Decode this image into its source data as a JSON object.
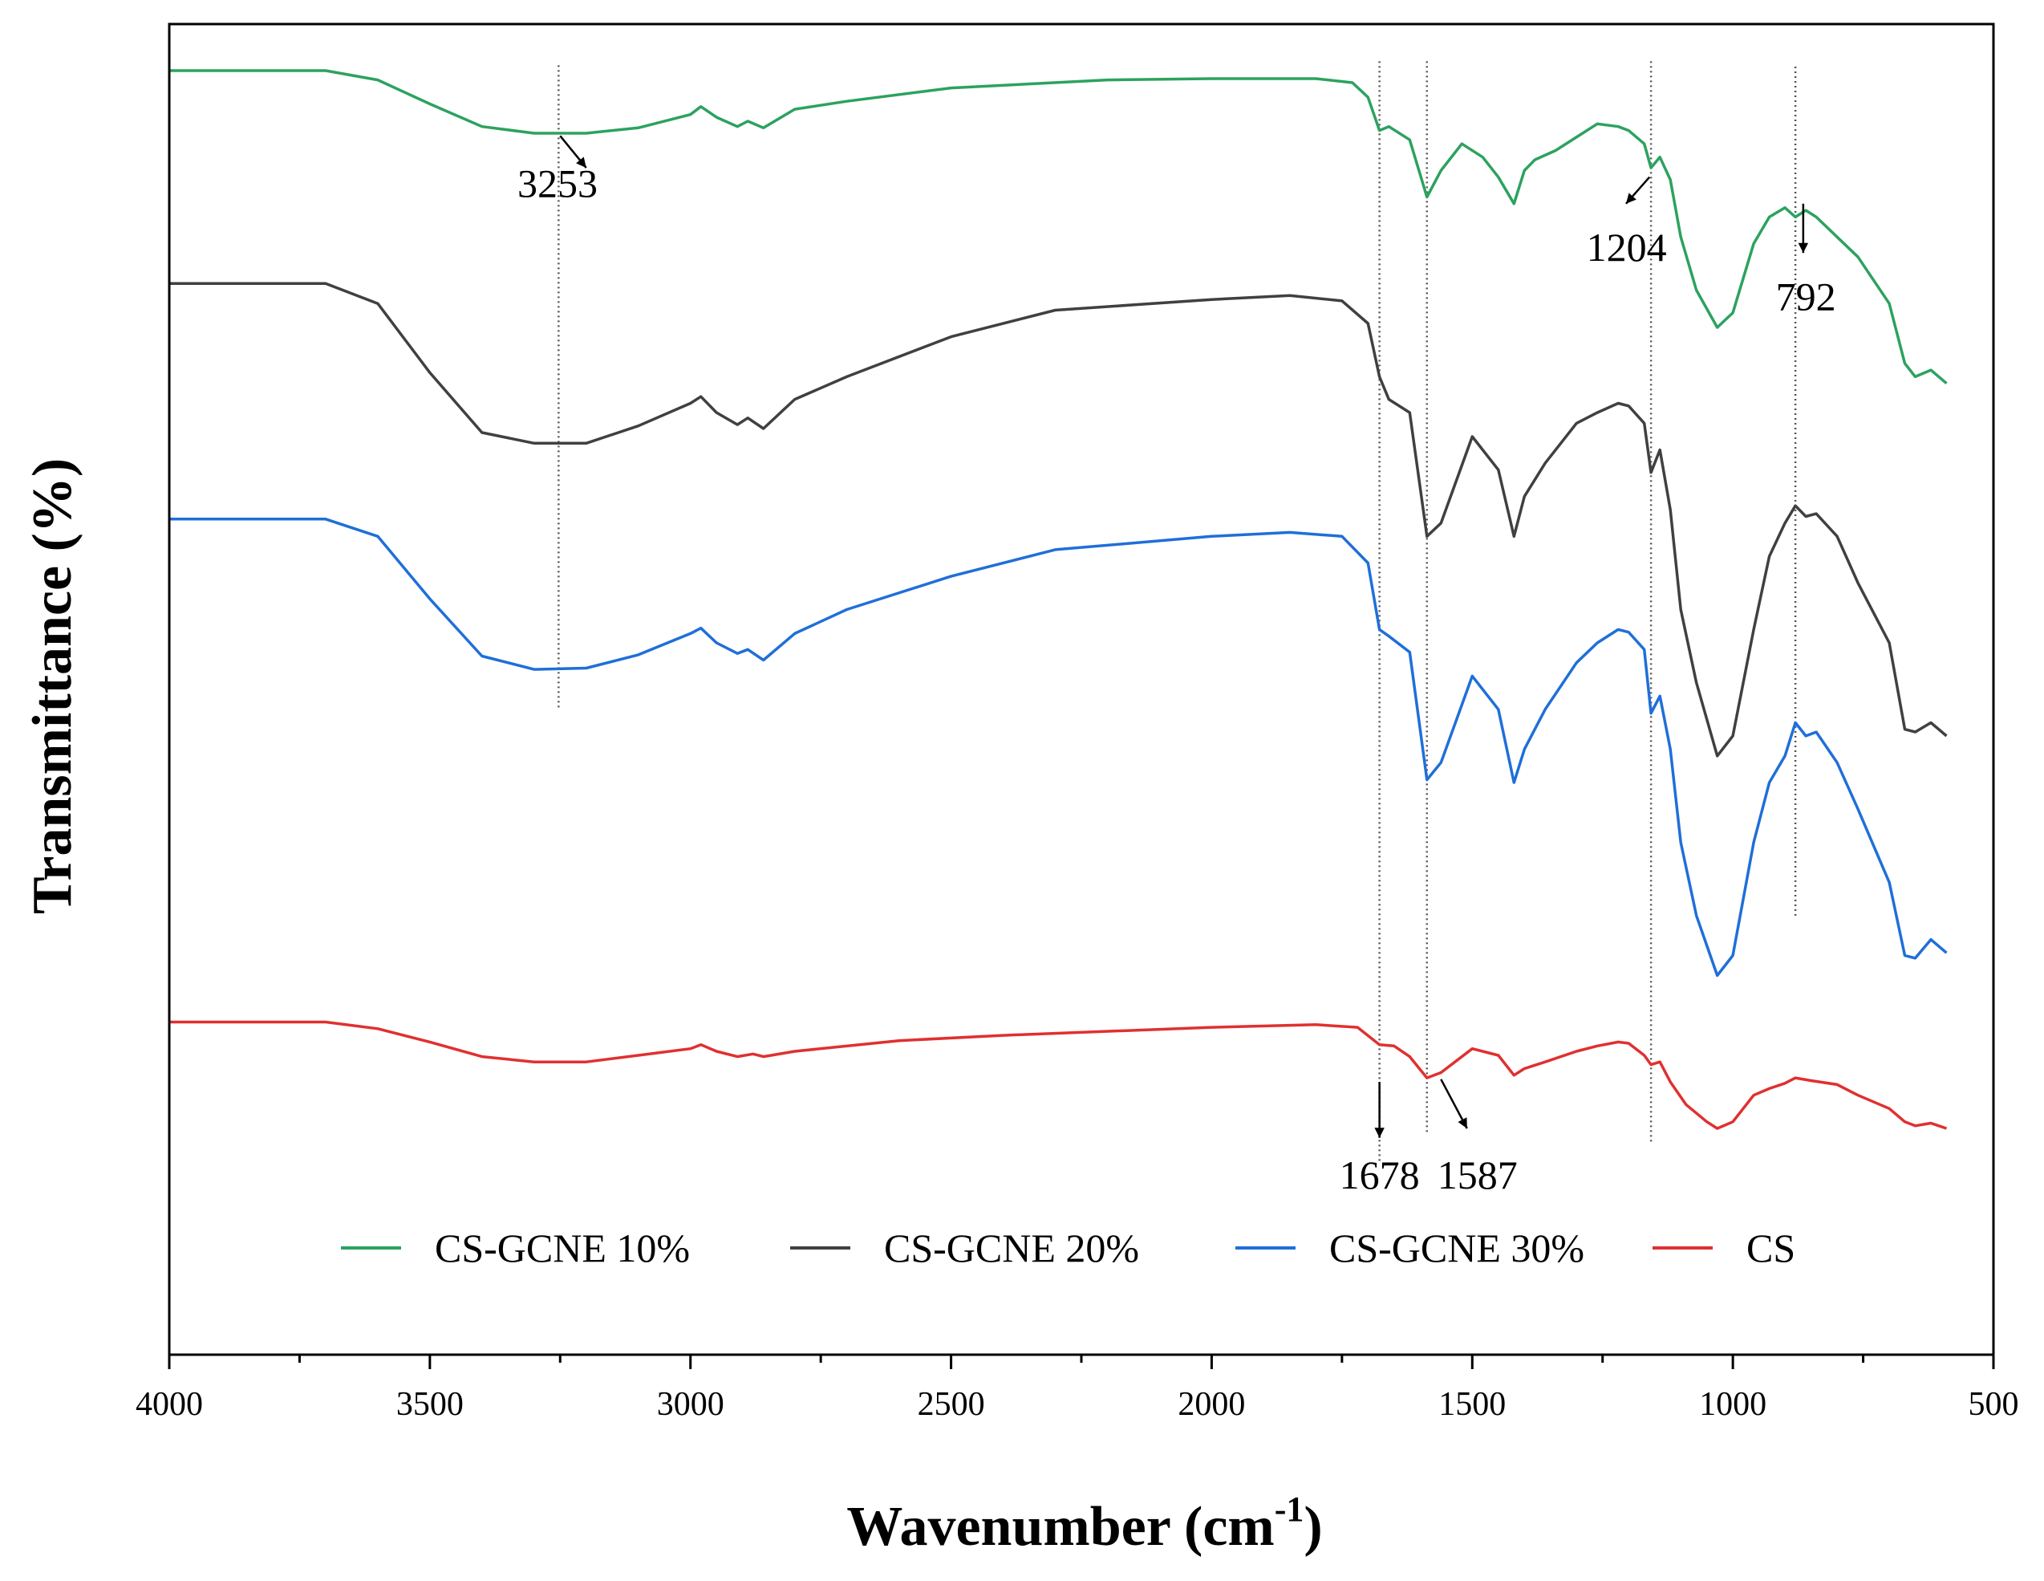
{
  "chart_data": {
    "type": "line",
    "xlabel": "Wavenumber (cm",
    "xlabel_sup": "-1",
    "xlabel_close": ")",
    "ylabel": "Transmittance (%)",
    "xlim": [
      4000,
      500
    ],
    "x_ticks": [
      4000,
      3500,
      3000,
      2500,
      2000,
      1500,
      1000,
      500
    ],
    "x_tick_labels": [
      "4000",
      "3500",
      "3000",
      "2500",
      "2000",
      "1500",
      "1000",
      "500"
    ],
    "ylim": [
      0,
      100
    ],
    "y_ticks_shown": false,
    "legend_position": "bottom-inside",
    "series": [
      {
        "name": "CS-GCNE 10%",
        "color": "#2ca25f",
        "points": [
          [
            4000,
            96.5
          ],
          [
            3700,
            96.5
          ],
          [
            3600,
            95.8
          ],
          [
            3500,
            94.0
          ],
          [
            3400,
            92.3
          ],
          [
            3300,
            91.8
          ],
          [
            3200,
            91.8
          ],
          [
            3100,
            92.2
          ],
          [
            3000,
            93.2
          ],
          [
            2980,
            93.8
          ],
          [
            2950,
            93.0
          ],
          [
            2910,
            92.3
          ],
          [
            2890,
            92.7
          ],
          [
            2860,
            92.2
          ],
          [
            2800,
            93.6
          ],
          [
            2700,
            94.2
          ],
          [
            2500,
            95.2
          ],
          [
            2200,
            95.8
          ],
          [
            2000,
            95.9
          ],
          [
            1800,
            95.9
          ],
          [
            1730,
            95.6
          ],
          [
            1700,
            94.5
          ],
          [
            1678,
            92.0
          ],
          [
            1660,
            92.3
          ],
          [
            1620,
            91.3
          ],
          [
            1587,
            87.0
          ],
          [
            1560,
            89.0
          ],
          [
            1520,
            91.0
          ],
          [
            1480,
            90.0
          ],
          [
            1450,
            88.5
          ],
          [
            1420,
            86.5
          ],
          [
            1400,
            89.0
          ],
          [
            1380,
            89.8
          ],
          [
            1340,
            90.5
          ],
          [
            1300,
            91.5
          ],
          [
            1260,
            92.5
          ],
          [
            1220,
            92.3
          ],
          [
            1200,
            92.0
          ],
          [
            1170,
            91.0
          ],
          [
            1157,
            89.2
          ],
          [
            1140,
            90.0
          ],
          [
            1120,
            88.3
          ],
          [
            1100,
            84.0
          ],
          [
            1070,
            80.0
          ],
          [
            1030,
            77.2
          ],
          [
            1000,
            78.3
          ],
          [
            960,
            83.5
          ],
          [
            930,
            85.5
          ],
          [
            900,
            86.2
          ],
          [
            880,
            85.5
          ],
          [
            860,
            86.0
          ],
          [
            840,
            85.5
          ],
          [
            800,
            84.0
          ],
          [
            760,
            82.5
          ],
          [
            700,
            79.0
          ],
          [
            670,
            74.5
          ],
          [
            650,
            73.5
          ],
          [
            620,
            74.0
          ],
          [
            590,
            73.0
          ]
        ]
      },
      {
        "name": "CS-GCNE 20%",
        "color": "#404040",
        "points": [
          [
            4000,
            80.5
          ],
          [
            3700,
            80.5
          ],
          [
            3600,
            79.0
          ],
          [
            3500,
            73.8
          ],
          [
            3400,
            69.3
          ],
          [
            3300,
            68.5
          ],
          [
            3200,
            68.5
          ],
          [
            3100,
            69.8
          ],
          [
            3000,
            71.5
          ],
          [
            2980,
            72.0
          ],
          [
            2950,
            70.8
          ],
          [
            2910,
            69.9
          ],
          [
            2890,
            70.4
          ],
          [
            2860,
            69.6
          ],
          [
            2800,
            71.8
          ],
          [
            2700,
            73.5
          ],
          [
            2500,
            76.5
          ],
          [
            2300,
            78.5
          ],
          [
            2000,
            79.3
          ],
          [
            1850,
            79.6
          ],
          [
            1750,
            79.2
          ],
          [
            1700,
            77.5
          ],
          [
            1678,
            73.5
          ],
          [
            1660,
            71.8
          ],
          [
            1620,
            70.8
          ],
          [
            1587,
            61.5
          ],
          [
            1560,
            62.5
          ],
          [
            1500,
            69.0
          ],
          [
            1450,
            66.5
          ],
          [
            1420,
            61.5
          ],
          [
            1400,
            64.5
          ],
          [
            1360,
            67.0
          ],
          [
            1300,
            70.0
          ],
          [
            1260,
            70.8
          ],
          [
            1220,
            71.5
          ],
          [
            1200,
            71.3
          ],
          [
            1170,
            70.0
          ],
          [
            1157,
            66.3
          ],
          [
            1140,
            68.0
          ],
          [
            1120,
            63.5
          ],
          [
            1100,
            56.0
          ],
          [
            1070,
            50.5
          ],
          [
            1030,
            45.0
          ],
          [
            1000,
            46.5
          ],
          [
            960,
            54.5
          ],
          [
            930,
            60.0
          ],
          [
            900,
            62.5
          ],
          [
            880,
            63.8
          ],
          [
            860,
            63.0
          ],
          [
            840,
            63.2
          ],
          [
            800,
            61.5
          ],
          [
            760,
            58.0
          ],
          [
            700,
            53.5
          ],
          [
            670,
            47.0
          ],
          [
            650,
            46.8
          ],
          [
            620,
            47.5
          ],
          [
            590,
            46.5
          ]
        ]
      },
      {
        "name": "CS-GCNE 30%",
        "color": "#1f6fd8",
        "points": [
          [
            4000,
            62.8
          ],
          [
            3700,
            62.8
          ],
          [
            3600,
            61.5
          ],
          [
            3500,
            56.8
          ],
          [
            3400,
            52.5
          ],
          [
            3300,
            51.5
          ],
          [
            3200,
            51.6
          ],
          [
            3100,
            52.6
          ],
          [
            3000,
            54.2
          ],
          [
            2980,
            54.6
          ],
          [
            2950,
            53.5
          ],
          [
            2910,
            52.7
          ],
          [
            2890,
            53.0
          ],
          [
            2860,
            52.2
          ],
          [
            2800,
            54.2
          ],
          [
            2700,
            56.0
          ],
          [
            2500,
            58.5
          ],
          [
            2300,
            60.5
          ],
          [
            2000,
            61.5
          ],
          [
            1850,
            61.8
          ],
          [
            1750,
            61.5
          ],
          [
            1700,
            59.5
          ],
          [
            1678,
            54.5
          ],
          [
            1660,
            54.0
          ],
          [
            1620,
            52.8
          ],
          [
            1587,
            43.2
          ],
          [
            1560,
            44.5
          ],
          [
            1500,
            51.0
          ],
          [
            1450,
            48.5
          ],
          [
            1420,
            43.0
          ],
          [
            1400,
            45.5
          ],
          [
            1360,
            48.5
          ],
          [
            1300,
            52.0
          ],
          [
            1260,
            53.5
          ],
          [
            1220,
            54.5
          ],
          [
            1200,
            54.3
          ],
          [
            1170,
            53.0
          ],
          [
            1157,
            48.2
          ],
          [
            1140,
            49.5
          ],
          [
            1120,
            45.5
          ],
          [
            1100,
            38.5
          ],
          [
            1070,
            33.0
          ],
          [
            1030,
            28.5
          ],
          [
            1000,
            30.0
          ],
          [
            960,
            38.5
          ],
          [
            930,
            43.0
          ],
          [
            900,
            45.0
          ],
          [
            880,
            47.5
          ],
          [
            860,
            46.5
          ],
          [
            840,
            46.8
          ],
          [
            800,
            44.5
          ],
          [
            760,
            41.0
          ],
          [
            700,
            35.5
          ],
          [
            670,
            30.0
          ],
          [
            650,
            29.8
          ],
          [
            620,
            31.2
          ],
          [
            590,
            30.2
          ]
        ]
      },
      {
        "name": "CS",
        "color": "#e03030",
        "points": [
          [
            4000,
            25.0
          ],
          [
            3700,
            25.0
          ],
          [
            3600,
            24.5
          ],
          [
            3500,
            23.5
          ],
          [
            3400,
            22.4
          ],
          [
            3300,
            22.0
          ],
          [
            3200,
            22.0
          ],
          [
            3100,
            22.5
          ],
          [
            3000,
            23.0
          ],
          [
            2980,
            23.3
          ],
          [
            2950,
            22.8
          ],
          [
            2910,
            22.4
          ],
          [
            2880,
            22.6
          ],
          [
            2860,
            22.4
          ],
          [
            2800,
            22.8
          ],
          [
            2600,
            23.6
          ],
          [
            2400,
            24.0
          ],
          [
            2000,
            24.6
          ],
          [
            1800,
            24.8
          ],
          [
            1720,
            24.6
          ],
          [
            1678,
            23.3
          ],
          [
            1650,
            23.2
          ],
          [
            1620,
            22.4
          ],
          [
            1587,
            20.8
          ],
          [
            1560,
            21.2
          ],
          [
            1500,
            23.0
          ],
          [
            1450,
            22.5
          ],
          [
            1420,
            21.0
          ],
          [
            1400,
            21.5
          ],
          [
            1360,
            22.0
          ],
          [
            1300,
            22.8
          ],
          [
            1260,
            23.2
          ],
          [
            1220,
            23.5
          ],
          [
            1200,
            23.4
          ],
          [
            1170,
            22.5
          ],
          [
            1157,
            21.8
          ],
          [
            1140,
            22.0
          ],
          [
            1120,
            20.5
          ],
          [
            1090,
            18.8
          ],
          [
            1050,
            17.5
          ],
          [
            1030,
            17.0
          ],
          [
            1000,
            17.5
          ],
          [
            960,
            19.5
          ],
          [
            930,
            20.0
          ],
          [
            900,
            20.4
          ],
          [
            880,
            20.8
          ],
          [
            850,
            20.6
          ],
          [
            800,
            20.3
          ],
          [
            760,
            19.5
          ],
          [
            700,
            18.5
          ],
          [
            670,
            17.5
          ],
          [
            650,
            17.2
          ],
          [
            620,
            17.4
          ],
          [
            590,
            17.0
          ]
        ]
      }
    ],
    "annotations": [
      {
        "label": "3253"
      },
      {
        "label": "1204"
      },
      {
        "label": "792"
      },
      {
        "label": "1678"
      },
      {
        "label": "1587"
      }
    ]
  }
}
